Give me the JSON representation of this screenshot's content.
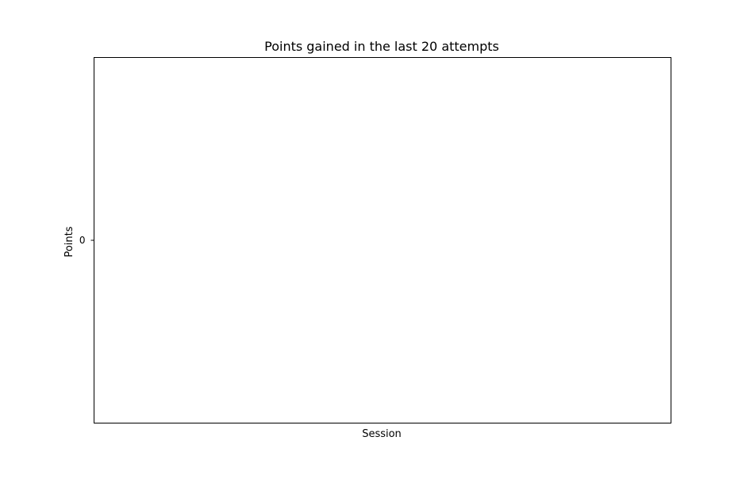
{
  "chart_data": {
    "type": "line",
    "title": "Points gained in the last 20 attempts",
    "xlabel": "Session",
    "ylabel": "Points",
    "x": [],
    "series": [
      {
        "values": []
      }
    ],
    "y_ticks": [
      0
    ],
    "x_ticks": [],
    "ylim": [
      -0.055,
      0.055
    ],
    "grid": false,
    "legend": "none"
  }
}
